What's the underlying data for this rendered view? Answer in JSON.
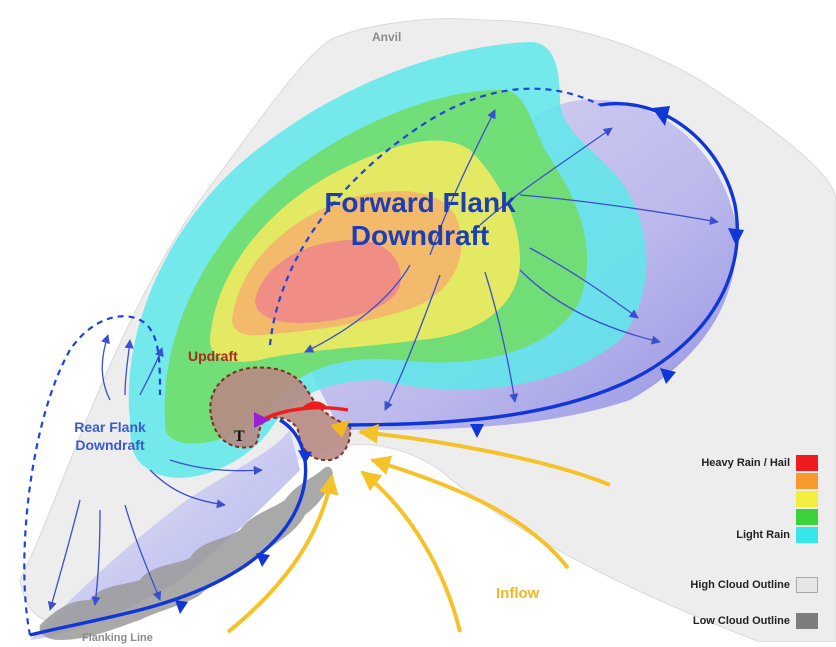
{
  "labels": {
    "anvil": "Anvil",
    "forward_flank": "Forward Flank",
    "downdraft": "Downdraft",
    "updraft": "Updraft",
    "rear_flank": "Rear Flank",
    "rear_downdraft": "Downdraft",
    "tornado": "T",
    "inflow": "Inflow",
    "flanking_line": "Flanking Line"
  },
  "legend": {
    "heavy": "Heavy Rain / Hail",
    "light": "Light Rain",
    "high_cloud": "High Cloud Outline",
    "low_cloud": "Low Cloud Outline",
    "rain_colors": [
      "#ee1c1c",
      "#f79a2e",
      "#f3ee3e",
      "#3cd23c",
      "#37e6ea"
    ],
    "high_cloud_color": "#e6e6e6",
    "low_cloud_color": "#7d7d7d"
  },
  "colors": {
    "front": "#1136d8",
    "warm_front": "#ee1c1c",
    "inflow": "#f6c22a",
    "arrows": "#3a4fd0",
    "anvil": "#ededed"
  }
}
